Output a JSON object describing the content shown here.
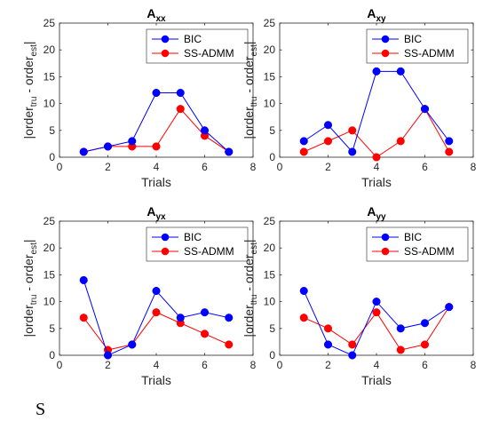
{
  "chart_data": [
    {
      "type": "line",
      "title": "A",
      "title_sub": "xx",
      "xlabel": "Trials",
      "ylabel": "|order",
      "ylabel_sub1": "tru",
      "ylabel_mid": " - order",
      "ylabel_sub2": "est",
      "ylabel_end": "|",
      "xlim": [
        0,
        8
      ],
      "ylim": [
        0,
        25
      ],
      "xticks": [
        0,
        2,
        4,
        6,
        8
      ],
      "yticks": [
        0,
        5,
        10,
        15,
        20,
        25
      ],
      "legend": "top-right",
      "x": [
        1,
        2,
        3,
        4,
        5,
        6,
        7
      ],
      "series": [
        {
          "name": "BIC",
          "color": "#0000ff",
          "values": [
            1,
            2,
            3,
            12,
            12,
            5,
            1
          ]
        },
        {
          "name": "SS-ADMM",
          "color": "#ff0000",
          "values": [
            1,
            2,
            2,
            2,
            9,
            4,
            1
          ]
        }
      ]
    },
    {
      "type": "line",
      "title": "A",
      "title_sub": "xy",
      "xlabel": "Trials",
      "ylabel": "|order",
      "ylabel_sub1": "tru",
      "ylabel_mid": " - order",
      "ylabel_sub2": "est",
      "ylabel_end": "|",
      "xlim": [
        0,
        8
      ],
      "ylim": [
        0,
        25
      ],
      "xticks": [
        0,
        2,
        4,
        6,
        8
      ],
      "yticks": [
        0,
        5,
        10,
        15,
        20,
        25
      ],
      "legend": "top-right",
      "x": [
        1,
        2,
        3,
        4,
        5,
        6,
        7
      ],
      "series": [
        {
          "name": "BIC",
          "color": "#0000ff",
          "values": [
            3,
            6,
            1,
            16,
            16,
            9,
            3
          ]
        },
        {
          "name": "SS-ADMM",
          "color": "#ff0000",
          "values": [
            1,
            3,
            5,
            0,
            3,
            9,
            1
          ]
        }
      ]
    },
    {
      "type": "line",
      "title": "A",
      "title_sub": "yx",
      "xlabel": "Trials",
      "ylabel": "|order",
      "ylabel_sub1": "tru",
      "ylabel_mid": " - order",
      "ylabel_sub2": "est",
      "ylabel_end": "|",
      "xlim": [
        0,
        8
      ],
      "ylim": [
        0,
        25
      ],
      "xticks": [
        0,
        2,
        4,
        6,
        8
      ],
      "yticks": [
        0,
        5,
        10,
        15,
        20,
        25
      ],
      "legend": "top-right",
      "x": [
        1,
        2,
        3,
        4,
        5,
        6,
        7
      ],
      "series": [
        {
          "name": "BIC",
          "color": "#0000ff",
          "values": [
            14,
            0,
            2,
            12,
            7,
            8,
            7
          ]
        },
        {
          "name": "SS-ADMM",
          "color": "#ff0000",
          "values": [
            7,
            1,
            2,
            8,
            6,
            4,
            2
          ]
        }
      ]
    },
    {
      "type": "line",
      "title": "A",
      "title_sub": "yy",
      "xlabel": "Trials",
      "ylabel": "|order",
      "ylabel_sub1": "tru",
      "ylabel_mid": " - order",
      "ylabel_sub2": "est",
      "ylabel_end": "|",
      "xlim": [
        0,
        8
      ],
      "ylim": [
        0,
        25
      ],
      "xticks": [
        0,
        2,
        4,
        6,
        8
      ],
      "yticks": [
        0,
        5,
        10,
        15,
        20,
        25
      ],
      "legend": "top-right",
      "x": [
        1,
        2,
        3,
        4,
        5,
        6,
        7
      ],
      "series": [
        {
          "name": "BIC",
          "color": "#0000ff",
          "values": [
            12,
            2,
            0,
            10,
            5,
            6,
            9
          ]
        },
        {
          "name": "SS-ADMM",
          "color": "#ff0000",
          "values": [
            7,
            5,
            2,
            8,
            1,
            2,
            9
          ]
        }
      ]
    }
  ],
  "caption_fragment": "S"
}
